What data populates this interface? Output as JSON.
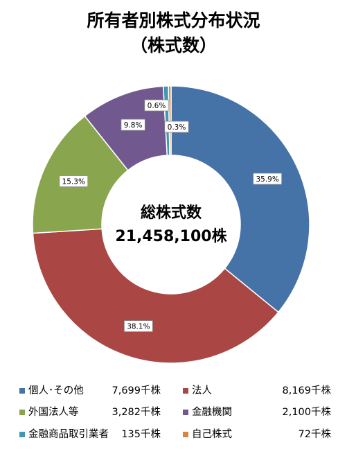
{
  "chart_data": {
    "type": "pie",
    "title": "所有者別株式分布状況",
    "subtitle": "（株式数）",
    "center_label_line1": "総株式数",
    "center_label_line2": "21,458,100株",
    "slices": [
      {
        "name": "個人･その他",
        "value_label": "7,699千株",
        "percent": 35.9,
        "percent_label": "35.9%",
        "color": "#4572A7"
      },
      {
        "name": "法人",
        "value_label": "8,169千株",
        "percent": 38.1,
        "percent_label": "38.1%",
        "color": "#AA4643"
      },
      {
        "name": "外国法人等",
        "value_label": "3,282千株",
        "percent": 15.3,
        "percent_label": "15.3%",
        "color": "#89A54E"
      },
      {
        "name": "金融機関",
        "value_label": "2,100千株",
        "percent": 9.8,
        "percent_label": "9.8%",
        "color": "#71588F"
      },
      {
        "name": "金融商品取引業者",
        "value_label": "135千株",
        "percent": 0.6,
        "percent_label": "0.6%",
        "color": "#4198AF"
      },
      {
        "name": "自己株式",
        "value_label": "72千株",
        "percent": 0.3,
        "percent_label": "0.3%",
        "color": "#DB843D"
      }
    ],
    "legend_position": "bottom"
  }
}
